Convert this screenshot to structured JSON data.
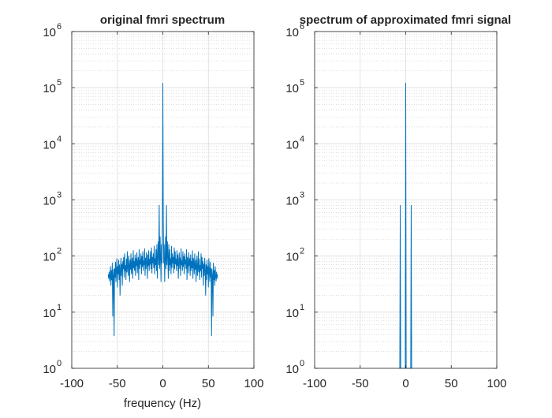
{
  "chart_data": [
    {
      "type": "line",
      "title": "original fmri spectrum",
      "xlabel": "frequency (Hz)",
      "ylabel": "",
      "xlim": [
        -100,
        100
      ],
      "ylim": [
        1,
        1000000
      ],
      "yscale": "log",
      "grid": true,
      "minor_grid": true,
      "x_ticks": [
        -100,
        -50,
        0,
        50,
        100
      ],
      "x_tick_labels": [
        "-100",
        "-50",
        "0",
        "50",
        "100"
      ],
      "y_tick_exponents": [
        0,
        1,
        2,
        3,
        4,
        5,
        6
      ],
      "y_tick_base": "10",
      "line_color": "#0072bd",
      "series": [
        {
          "x": [
            -60,
            -59.5,
            -59,
            -58.5,
            -58,
            -57.5,
            -57,
            -56.5,
            -56,
            -55.5,
            -55,
            -54.5,
            -54,
            -53.5,
            -53,
            -52.5,
            -52,
            -51.5,
            -51,
            -50.5,
            -50,
            -49.5,
            -49,
            -48.5,
            -48,
            -47.5,
            -47,
            -46.5,
            -46,
            -45.5,
            -45,
            -44.5,
            -44,
            -43.5,
            -43,
            -42.5,
            -42,
            -41.5,
            -41,
            -40.5,
            -40,
            -39.5,
            -39,
            -38.5,
            -38,
            -37.5,
            -37,
            -36.5,
            -36,
            -35.5,
            -35,
            -34.5,
            -34,
            -33.5,
            -33,
            -32.5,
            -32,
            -31.5,
            -31,
            -30.5,
            -30,
            -29.5,
            -29,
            -28.5,
            -28,
            -27.5,
            -27,
            -26.5,
            -26,
            -25.5,
            -25,
            -24.5,
            -24,
            -23.5,
            -23,
            -22.5,
            -22,
            -21.5,
            -21,
            -20.5,
            -20,
            -19.5,
            -19,
            -18.5,
            -18,
            -17.5,
            -17,
            -16.5,
            -16,
            -15.5,
            -15,
            -14.5,
            -14,
            -13.5,
            -13,
            -12.5,
            -12,
            -11.5,
            -11,
            -10.5,
            -10,
            -9.5,
            -9,
            -8.5,
            -8,
            -7.5,
            -7,
            -6.5,
            -6,
            -5.5,
            -5,
            -4.5,
            -4,
            -3.5,
            -3,
            -2.5,
            -2,
            -1.5,
            -1,
            -0.5,
            0,
            0.5,
            1,
            1.5,
            2,
            2.5,
            3,
            3.5,
            4,
            4.5,
            5,
            5.5,
            6,
            6.5,
            7,
            7.5,
            8,
            8.5,
            9,
            9.5,
            10,
            10.5,
            11,
            11.5,
            12,
            12.5,
            13,
            13.5,
            14,
            14.5,
            15,
            15.5,
            16,
            16.5,
            17,
            17.5,
            18,
            18.5,
            19,
            19.5,
            20,
            20.5,
            21,
            21.5,
            22,
            22.5,
            23,
            23.5,
            24,
            24.5,
            25,
            25.5,
            26,
            26.5,
            27,
            27.5,
            28,
            28.5,
            29,
            29.5,
            30,
            30.5,
            31,
            31.5,
            32,
            32.5,
            33,
            33.5,
            34,
            34.5,
            35,
            35.5,
            36,
            36.5,
            37,
            37.5,
            38,
            38.5,
            39,
            39.5,
            40,
            40.5,
            41,
            41.5,
            42,
            42.5,
            43,
            43.5,
            44,
            44.5,
            45,
            45.5,
            46,
            46.5,
            47,
            47.5,
            48,
            48.5,
            49,
            49.5,
            50,
            50.5,
            51,
            51.5,
            52,
            52.5,
            53,
            53.5,
            54,
            54.5,
            55,
            55.5,
            56,
            56.5,
            57,
            57.5,
            58,
            58.5,
            59,
            59.5,
            60
          ],
          "y": [
            47,
            40,
            52,
            36,
            44,
            65,
            30,
            55,
            38,
            75,
            8.5,
            45,
            58,
            3.8,
            60,
            42,
            78,
            35,
            55,
            90,
            28,
            65,
            48,
            85,
            38,
            70,
            20,
            58,
            92,
            45,
            72,
            30,
            80,
            60,
            95,
            42,
            110,
            55,
            68,
            38,
            88,
            52,
            120,
            60,
            45,
            100,
            70,
            35,
            85,
            58,
            110,
            48,
            75,
            92,
            40,
            125,
            62,
            80,
            55,
            105,
            45,
            90,
            68,
            115,
            50,
            78,
            95,
            38,
            130,
            60,
            85,
            72,
            110,
            48,
            98,
            65,
            120,
            55,
            82,
            70,
            135,
            45,
            92,
            60,
            115,
            78,
            40,
            105,
            68,
            125,
            55,
            88,
            72,
            120,
            60,
            140,
            50,
            95,
            75,
            110,
            62,
            150,
            48,
            90,
            70,
            130,
            55,
            160,
            40,
            100,
            180,
            70,
            800,
            60,
            220,
            90,
            35,
            160,
            75,
            400,
            120000,
            400,
            75,
            160,
            35,
            90,
            220,
            60,
            800,
            70,
            180,
            100,
            40,
            160,
            55,
            130,
            70,
            90,
            48,
            150,
            62,
            110,
            75,
            95,
            50,
            140,
            60,
            120,
            72,
            88,
            55,
            125,
            68,
            105,
            40,
            78,
            115,
            60,
            92,
            45,
            135,
            70,
            82,
            55,
            120,
            65,
            98,
            48,
            110,
            72,
            85,
            60,
            130,
            38,
            95,
            78,
            50,
            115,
            68,
            90,
            45,
            105,
            55,
            80,
            62,
            125,
            40,
            92,
            75,
            48,
            110,
            58,
            85,
            35,
            70,
            100,
            45,
            60,
            120,
            52,
            88,
            38,
            68,
            55,
            110,
            42,
            95,
            60,
            80,
            30,
            72,
            45,
            92,
            58,
            20,
            70,
            38,
            85,
            48,
            65,
            28,
            90,
            55,
            35,
            78,
            42,
            60,
            3.8,
            58,
            45,
            8.5,
            75,
            38,
            55,
            30,
            65,
            44,
            36,
            52,
            40,
            47
          ]
        }
      ]
    },
    {
      "type": "line",
      "title": "spectrum of approximated fmri signal",
      "xlabel": "",
      "ylabel": "",
      "xlim": [
        -100,
        100
      ],
      "ylim": [
        1,
        1000000
      ],
      "yscale": "log",
      "grid": true,
      "minor_grid": true,
      "x_ticks": [
        -100,
        -50,
        0,
        50,
        100
      ],
      "x_tick_labels": [
        "-100",
        "-50",
        "0",
        "50",
        "100"
      ],
      "y_tick_exponents": [
        0,
        1,
        2,
        3,
        4,
        5,
        6
      ],
      "y_tick_base": "10",
      "line_color": "#0072bd",
      "series": [
        {
          "x": [
            -7.5,
            -6.5,
            -6,
            -5.5,
            -1,
            -0.5,
            0,
            0.5,
            1,
            5.5,
            6,
            6.5,
            7.5
          ],
          "y": [
            1,
            1,
            800,
            1,
            1,
            1,
            120000,
            1,
            1,
            1,
            800,
            1,
            1
          ]
        }
      ]
    }
  ]
}
